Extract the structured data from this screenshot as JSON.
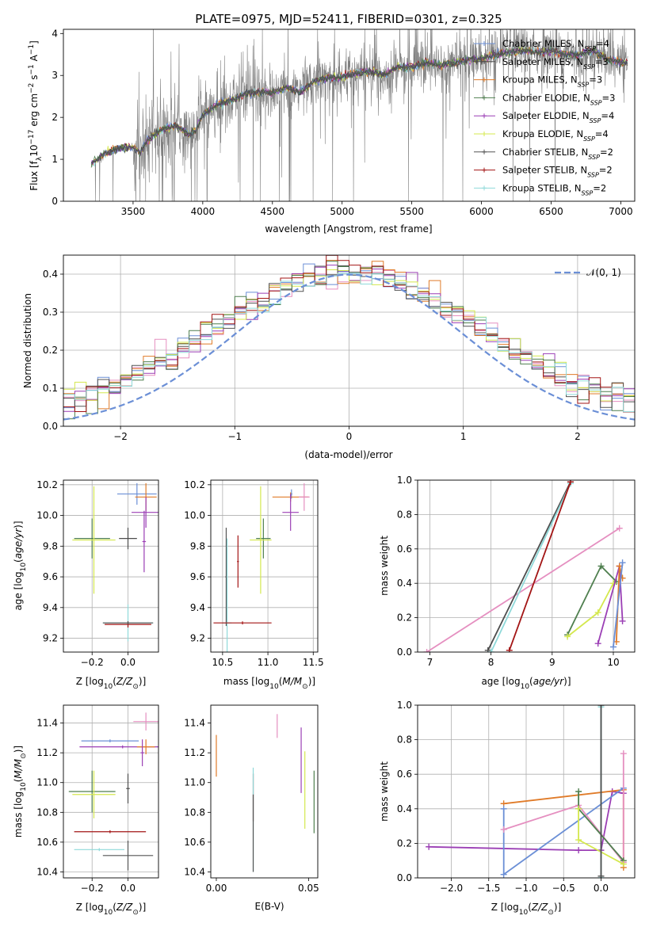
{
  "figure_title": "PLATE=0975, MJD=52411, FIBERID=0301, z=0.325",
  "colors": {
    "series": [
      "#6b8fd6",
      "#4d4d4d",
      "#e07b29",
      "#4f7f4f",
      "#9b3fb5",
      "#d4e84e",
      "#545454",
      "#a31515",
      "#8fd9d9"
    ],
    "pink": "#e58fc0",
    "observed": "#808080",
    "normal": "#6b8fd6"
  },
  "chart_data": [
    {
      "id": "spectrum",
      "type": "line",
      "title": "",
      "xlabel": "wavelength [Angstrom, rest frame]",
      "ylabel": "Flux [f_λ 10^-17 erg cm^-2 s^-1 A^-1]",
      "xlim": [
        3000,
        7100
      ],
      "ylim": [
        0,
        4.1
      ],
      "xticks": [
        3500,
        4000,
        4500,
        5000,
        5500,
        6000,
        6500,
        7000
      ],
      "yticks": [
        0,
        1,
        2,
        3,
        4
      ],
      "grid": false,
      "legend_position": "right",
      "observed": {
        "x": [
          3200,
          3300,
          3400,
          3500,
          3550,
          3600,
          3700,
          3800,
          3900,
          3950,
          4000,
          4100,
          4200,
          4300,
          4400,
          4500,
          4600,
          4700,
          4800,
          4900,
          5000,
          5100,
          5200,
          5300,
          5400,
          5500,
          5600,
          5700,
          5800,
          5900,
          6000,
          6100,
          6200,
          6300,
          6400,
          6500,
          6600,
          6700,
          6800,
          6900,
          7000
        ],
        "y": [
          0.9,
          1.15,
          1.25,
          1.3,
          1.15,
          1.45,
          1.7,
          1.8,
          1.6,
          1.7,
          2.05,
          2.3,
          2.4,
          2.55,
          2.6,
          2.6,
          2.7,
          2.6,
          2.85,
          2.95,
          2.95,
          3.05,
          3.1,
          3.0,
          3.2,
          3.2,
          3.3,
          3.25,
          3.3,
          3.35,
          3.4,
          3.5,
          3.55,
          3.6,
          3.55,
          3.6,
          3.5,
          3.5,
          3.6,
          3.4,
          3.3
        ]
      },
      "series": [
        {
          "name": "Chabrier MILES, N_SSP=4"
        },
        {
          "name": "Salpeter MILES, N_SSP=3"
        },
        {
          "name": "Kroupa MILES, N_SSP=3"
        },
        {
          "name": "Chabrier ELODIE, N_SSP=3"
        },
        {
          "name": "Salpeter ELODIE, N_SSP=4"
        },
        {
          "name": "Kroupa ELODIE, N_SSP=4"
        },
        {
          "name": "Chabrier STELIB, N_SSP=2"
        },
        {
          "name": "Salpeter STELIB, N_SSP=2"
        },
        {
          "name": "Kroupa STELIB, N_SSP=2"
        }
      ]
    },
    {
      "id": "residuals",
      "type": "histogram",
      "title": "",
      "xlabel": "(data-model)/error",
      "ylabel": "Normed distribution",
      "xlim": [
        -2.5,
        2.5
      ],
      "ylim": [
        0,
        0.45
      ],
      "xticks": [
        -2,
        -1,
        0,
        1,
        2
      ],
      "yticks": [
        0.0,
        0.1,
        0.2,
        0.3,
        0.4
      ],
      "grid": true,
      "legend_position": "top-right",
      "normal_label": "𝒩(0, 1)",
      "bin_width": 0.1,
      "bin_start": -2.5
    },
    {
      "id": "age_vs_Z",
      "type": "scatter",
      "xlabel": "Z [log10(Z/Z☉)]",
      "ylabel": "age  [log10(age/yr)]",
      "xlim": [
        -0.36,
        0.17
      ],
      "ylim": [
        9.11,
        10.23
      ],
      "xticks": [
        -0.2,
        0.0
      ],
      "yticks": [
        9.2,
        9.4,
        9.6,
        9.8,
        10.0,
        10.2
      ],
      "grid": true,
      "points": [
        {
          "x": 0.05,
          "y": 10.14,
          "xerr": 0.11,
          "yerr": 0.07,
          "color_index": 0
        },
        {
          "x": 0.1,
          "y": 10.12,
          "xerr": 0.06,
          "yerr": 0.09,
          "color_index": 2
        },
        {
          "x": 0.1,
          "y": 10.02,
          "xerr": 0.08,
          "yerr": 0.1,
          "color_index": 4
        },
        {
          "x": -0.2,
          "y": 9.85,
          "xerr": 0.1,
          "yerr": 0.13,
          "color_index": 3
        },
        {
          "x": -0.19,
          "y": 9.84,
          "xerr": 0.12,
          "yerr": 0.35,
          "color_index": 5
        },
        {
          "x": 0.0,
          "y": 9.85,
          "xerr": 0.05,
          "yerr": 0.07,
          "color_index": 1
        },
        {
          "x": 0.09,
          "y": 9.83,
          "xerr": 0.01,
          "yerr": 0.2,
          "color_index": 4
        },
        {
          "x": 0.0,
          "y": 9.3,
          "xerr": 0.14,
          "yerr": 0.12,
          "color_index": 8
        },
        {
          "x": 0.0,
          "y": 9.29,
          "xerr": 0.13,
          "yerr": 0.02,
          "color_index": 7
        },
        {
          "x": 0.0,
          "y": 9.3,
          "xerr": 0.14,
          "yerr": 0.01,
          "color_index": 6
        }
      ]
    },
    {
      "id": "age_vs_mass",
      "type": "scatter",
      "xlabel": "mass [log10(M/M☉)]",
      "ylabel": "",
      "xlim": [
        10.37,
        11.55
      ],
      "ylim": [
        9.11,
        10.23
      ],
      "xticks": [
        10.5,
        11.0,
        11.5
      ],
      "yticks": [
        9.2,
        9.4,
        9.6,
        9.8,
        10.0,
        10.2
      ],
      "grid": true,
      "points": [
        {
          "x": 11.26,
          "y": 10.14,
          "xerr": 0.01,
          "yerr": 0.03,
          "color_index": 0
        },
        {
          "x": 11.25,
          "y": 10.12,
          "xerr": 0.2,
          "yerr": 0.03,
          "color_index": 2
        },
        {
          "x": 11.25,
          "y": 10.02,
          "xerr": 0.09,
          "yerr": 0.12,
          "color_index": 4
        },
        {
          "x": 11.4,
          "y": 10.12,
          "xerr": 0.06,
          "yerr": 0.09,
          "color_index": 9
        },
        {
          "x": 10.95,
          "y": 9.85,
          "xerr": 0.08,
          "yerr": 0.13,
          "color_index": 3
        },
        {
          "x": 10.92,
          "y": 9.84,
          "xerr": 0.12,
          "yerr": 0.35,
          "color_index": 5
        },
        {
          "x": 10.67,
          "y": 9.7,
          "xerr": 0.01,
          "yerr": 0.17,
          "color_index": 7
        },
        {
          "x": 10.54,
          "y": 9.6,
          "xerr": 0.01,
          "yerr": 0.32,
          "color_index": 6
        },
        {
          "x": 10.55,
          "y": 9.3,
          "xerr": 0.05,
          "yerr": 0.55,
          "color_index": 8
        },
        {
          "x": 10.72,
          "y": 9.3,
          "xerr": 0.32,
          "yerr": 0.01,
          "color_index": 7
        }
      ]
    },
    {
      "id": "weight_vs_age",
      "type": "line",
      "xlabel": "age  [log10(age/yr)]",
      "ylabel": "mass weight",
      "xlim": [
        6.8,
        10.35
      ],
      "ylim": [
        0,
        1
      ],
      "xticks": [
        7,
        8,
        9,
        10
      ],
      "yticks": [
        0.0,
        0.2,
        0.4,
        0.6,
        0.8,
        1.0
      ],
      "grid": true,
      "series": [
        {
          "color_index": 9,
          "points": [
            [
              6.95,
              0.0
            ],
            [
              10.1,
              0.72
            ]
          ]
        },
        {
          "color_index": 1,
          "points": [
            [
              7.95,
              0.01
            ],
            [
              9.3,
              0.99
            ]
          ]
        },
        {
          "color_index": 8,
          "points": [
            [
              8.0,
              0.0
            ],
            [
              9.3,
              0.98
            ]
          ]
        },
        {
          "color_index": 7,
          "points": [
            [
              8.3,
              0.01
            ],
            [
              9.3,
              0.99
            ]
          ]
        },
        {
          "color_index": 3,
          "points": [
            [
              9.25,
              0.1
            ],
            [
              9.8,
              0.5
            ],
            [
              10.05,
              0.41
            ]
          ]
        },
        {
          "color_index": 5,
          "points": [
            [
              9.25,
              0.09
            ],
            [
              9.75,
              0.23
            ],
            [
              10.0,
              0.4
            ]
          ]
        },
        {
          "color_index": 4,
          "points": [
            [
              9.75,
              0.05
            ],
            [
              10.1,
              0.5
            ],
            [
              10.15,
              0.18
            ]
          ]
        },
        {
          "color_index": 2,
          "points": [
            [
              10.05,
              0.06
            ],
            [
              10.1,
              0.5
            ],
            [
              10.15,
              0.43
            ]
          ]
        },
        {
          "color_index": 0,
          "points": [
            [
              10.0,
              0.03
            ],
            [
              10.15,
              0.52
            ]
          ]
        }
      ]
    },
    {
      "id": "mass_vs_Z",
      "type": "scatter",
      "xlabel": "Z [log10(Z/Z☉)]",
      "ylabel": "mass [log10(M/M☉)]",
      "xlim": [
        -0.36,
        0.17
      ],
      "ylim": [
        10.36,
        11.52
      ],
      "xticks": [
        -0.2,
        0.0
      ],
      "yticks": [
        10.4,
        10.6,
        10.8,
        11.0,
        11.2,
        11.4
      ],
      "grid": true,
      "points": [
        {
          "x": 0.1,
          "y": 11.41,
          "xerr": 0.07,
          "yerr": 0.06,
          "color_index": 9
        },
        {
          "x": -0.1,
          "y": 11.28,
          "xerr": 0.16,
          "yerr": 0.01,
          "color_index": 0
        },
        {
          "x": -0.03,
          "y": 11.24,
          "xerr": 0.24,
          "yerr": 0.01,
          "color_index": 4
        },
        {
          "x": 0.1,
          "y": 11.24,
          "xerr": 0.05,
          "yerr": 0.05,
          "color_index": 2
        },
        {
          "x": 0.08,
          "y": 11.2,
          "xerr": 0.01,
          "yerr": 0.09,
          "color_index": 4
        },
        {
          "x": -0.2,
          "y": 10.94,
          "xerr": 0.13,
          "yerr": 0.14,
          "color_index": 3
        },
        {
          "x": -0.19,
          "y": 10.92,
          "xerr": 0.12,
          "yerr": 0.16,
          "color_index": 5
        },
        {
          "x": 0.0,
          "y": 10.96,
          "xerr": 0.01,
          "yerr": 0.1,
          "color_index": 1
        },
        {
          "x": -0.1,
          "y": 10.67,
          "xerr": 0.2,
          "yerr": 0.01,
          "color_index": 7
        },
        {
          "x": -0.16,
          "y": 10.55,
          "xerr": 0.14,
          "yerr": 0.01,
          "color_index": 8
        },
        {
          "x": 0.0,
          "y": 10.51,
          "xerr": 0.14,
          "yerr": 0.1,
          "color_index": 6
        }
      ]
    },
    {
      "id": "mass_vs_ebv",
      "type": "scatter",
      "xlabel": "E(B-V)",
      "ylabel": "",
      "xlim": [
        -0.003,
        0.055
      ],
      "ylim": [
        10.36,
        11.52
      ],
      "xticks": [
        0.0,
        0.05
      ],
      "xtick_labels": [
        "0.00",
        "0.05"
      ],
      "yticks": [
        10.4,
        10.6,
        10.8,
        11.0,
        11.2,
        11.4
      ],
      "grid": false,
      "points": [
        {
          "x": 0.0,
          "y": 11.18,
          "xerr": 0.0,
          "yerr": 0.14,
          "color_index": 2
        },
        {
          "x": 0.033,
          "y": 11.38,
          "xerr": 0.0,
          "yerr": 0.08,
          "color_index": 9
        },
        {
          "x": 0.046,
          "y": 11.15,
          "xerr": 0.0,
          "yerr": 0.22,
          "color_index": 4
        },
        {
          "x": 0.048,
          "y": 10.95,
          "xerr": 0.0,
          "yerr": 0.26,
          "color_index": 5
        },
        {
          "x": 0.053,
          "y": 10.87,
          "xerr": 0.0,
          "yerr": 0.21,
          "color_index": 3
        },
        {
          "x": 0.02,
          "y": 10.9,
          "xerr": 0.0,
          "yerr": 0.16,
          "color_index": 7
        },
        {
          "x": 0.02,
          "y": 10.75,
          "xerr": 0.0,
          "yerr": 0.35,
          "color_index": 8
        },
        {
          "x": 0.02,
          "y": 10.66,
          "xerr": 0.0,
          "yerr": 0.26,
          "color_index": 6
        }
      ]
    },
    {
      "id": "weight_vs_Z",
      "type": "line",
      "xlabel": "Z [log10(Z/Z☉)]",
      "ylabel": "mass weight",
      "xlim": [
        -2.45,
        0.45
      ],
      "ylim": [
        0,
        1
      ],
      "xticks": [
        -2.0,
        -1.5,
        -1.0,
        -0.5,
        0.0
      ],
      "yticks": [
        0.0,
        0.2,
        0.4,
        0.6,
        0.8,
        1.0
      ],
      "grid": true,
      "series": [
        {
          "color_index": 4,
          "points": [
            [
              -2.3,
              0.18
            ],
            [
              -0.3,
              0.16
            ],
            [
              0.0,
              0.16
            ],
            [
              0.15,
              0.5
            ],
            [
              0.3,
              0.49
            ]
          ]
        },
        {
          "color_index": 2,
          "points": [
            [
              -1.3,
              0.43
            ],
            [
              0.3,
              0.51
            ],
            [
              0.3,
              0.06
            ]
          ]
        },
        {
          "color_index": 0,
          "points": [
            [
              -1.3,
              0.4
            ],
            [
              -1.3,
              0.02
            ],
            [
              0.3,
              0.52
            ]
          ]
        },
        {
          "color_index": 9,
          "points": [
            [
              -1.3,
              0.28
            ],
            [
              -0.3,
              0.42
            ],
            [
              0.3,
              0.09
            ],
            [
              0.3,
              0.72
            ]
          ]
        },
        {
          "color_index": 3,
          "points": [
            [
              -0.3,
              0.5
            ],
            [
              -0.3,
              0.4
            ],
            [
              0.3,
              0.1
            ]
          ]
        },
        {
          "color_index": 5,
          "points": [
            [
              -0.3,
              0.4
            ],
            [
              -0.3,
              0.22
            ],
            [
              0.3,
              0.08
            ]
          ]
        },
        {
          "color_index": 8,
          "points": [
            [
              0.0,
              0.99
            ],
            [
              0.0,
              0.0
            ]
          ]
        },
        {
          "color_index": 1,
          "points": [
            [
              0.0,
              1.0
            ],
            [
              0.0,
              0.01
            ]
          ]
        }
      ]
    }
  ]
}
